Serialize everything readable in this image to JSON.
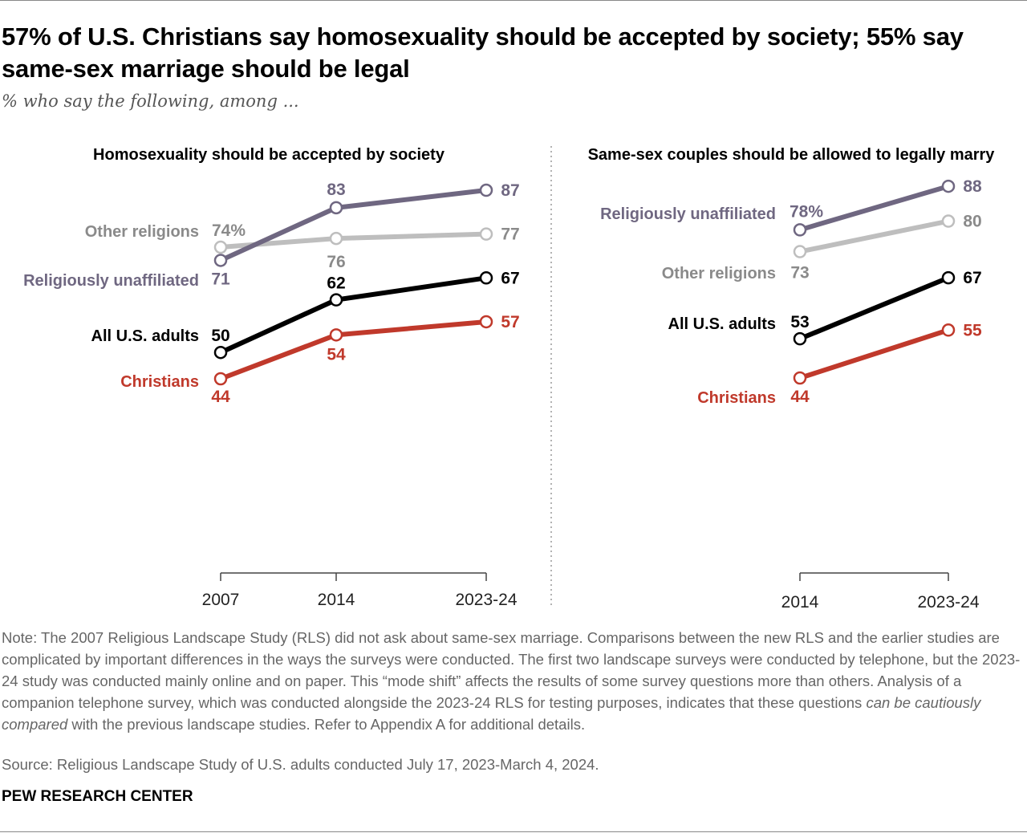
{
  "title": "57% of U.S. Christians say homosexuality should be accepted by society; 55% say same-sex marriage should be legal",
  "subtitle": "% who say the following, among ...",
  "colors": {
    "unaffiliated": "#6f6781",
    "other": "#bebebe",
    "other_label": "#8a8a8a",
    "all": "#000000",
    "christians": "#c0392b"
  },
  "chart_data": [
    {
      "type": "line",
      "title": "Homosexuality should be accepted by society",
      "x": [
        "2007",
        "2014",
        "2023-24"
      ],
      "series": [
        {
          "name": "Religiously unaffiliated",
          "key": "unaffiliated",
          "values": [
            71,
            83,
            87
          ],
          "labels": [
            "71",
            "83",
            "87"
          ]
        },
        {
          "name": "Other religions",
          "key": "other",
          "values": [
            74,
            76,
            77
          ],
          "labels": [
            "74%",
            "76",
            "77"
          ]
        },
        {
          "name": "All U.S. adults",
          "key": "all",
          "values": [
            50,
            62,
            67
          ],
          "labels": [
            "50",
            "62",
            "67"
          ]
        },
        {
          "name": "Christians",
          "key": "christians",
          "values": [
            44,
            54,
            57
          ],
          "labels": [
            "44",
            "54",
            "57"
          ]
        }
      ]
    },
    {
      "type": "line",
      "title": "Same-sex couples should be allowed to legally marry",
      "x": [
        "2014",
        "2023-24"
      ],
      "series": [
        {
          "name": "Religiously unaffiliated",
          "key": "unaffiliated",
          "values": [
            78,
            88
          ],
          "labels": [
            "78%",
            "88"
          ]
        },
        {
          "name": "Other religions",
          "key": "other",
          "values": [
            73,
            80
          ],
          "labels": [
            "73",
            "80"
          ]
        },
        {
          "name": "All U.S. adults",
          "key": "all",
          "values": [
            53,
            67
          ],
          "labels": [
            "53",
            "67"
          ]
        },
        {
          "name": "Christians",
          "key": "christians",
          "values": [
            44,
            55
          ],
          "labels": [
            "44",
            "55"
          ]
        }
      ]
    }
  ],
  "note_parts": [
    "Note: The 2007 Religious Landscape Study (RLS) did not ask about same-sex marriage. Comparisons between the new RLS and the earlier studies are complicated by important differences in the ways the surveys were conducted. The first two landscape surveys were conducted by telephone, but the 2023-24 study was conducted mainly online and on paper. This “mode shift” affects the results of some survey questions more than others. Analysis of a companion telephone survey, which was conducted alongside the 2023-24 RLS for testing purposes, indicates that these questions ",
    "can be cautiously compared",
    " with the previous landscape studies. Refer to Appendix A for additional details."
  ],
  "source": "Source: Religious Landscape Study of U.S. adults conducted July 17, 2023-March 4, 2024.",
  "brand": "PEW RESEARCH CENTER"
}
